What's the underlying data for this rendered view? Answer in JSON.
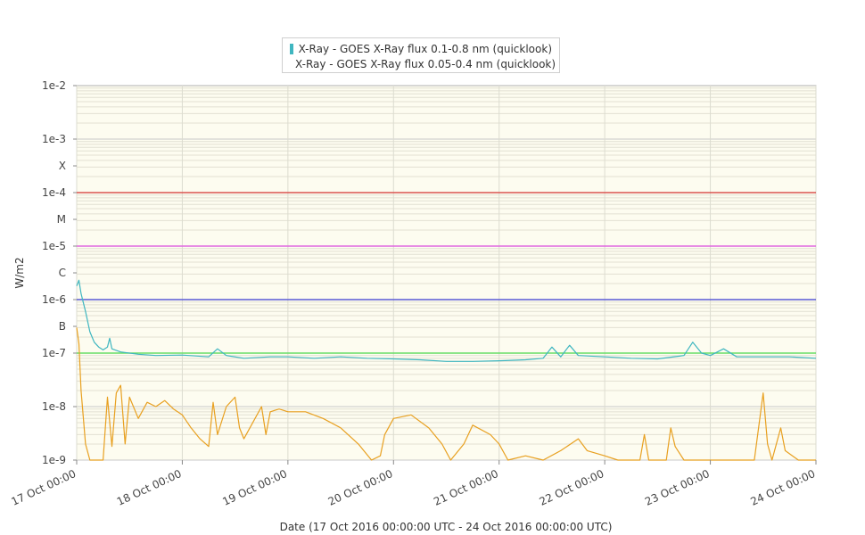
{
  "chart_data": {
    "type": "line",
    "xlabel": "Date (17 Oct 2016 00:00:00 UTC - 24 Oct 2016 00:00:00 UTC)",
    "ylabel": "W/m2",
    "y_scale": "log",
    "ylim": [
      1e-09,
      0.01
    ],
    "xlim": [
      "2016-10-17T00:00",
      "2016-10-24T00:00"
    ],
    "background": "#fdfcf0",
    "x_ticks": [
      {
        "label": "17 Oct 00:00",
        "t": "2016-10-17T00:00"
      },
      {
        "label": "18 Oct 00:00",
        "t": "2016-10-18T00:00"
      },
      {
        "label": "19 Oct 00:00",
        "t": "2016-10-19T00:00"
      },
      {
        "label": "20 Oct 00:00",
        "t": "2016-10-20T00:00"
      },
      {
        "label": "21 Oct 00:00",
        "t": "2016-10-21T00:00"
      },
      {
        "label": "22 Oct 00:00",
        "t": "2016-10-22T00:00"
      },
      {
        "label": "23 Oct 00:00",
        "t": "2016-10-23T00:00"
      },
      {
        "label": "24 Oct 00:00",
        "t": "2016-10-24T00:00"
      }
    ],
    "y_ticks": [
      {
        "label": "1e-2",
        "v": 0.01
      },
      {
        "label": "1e-3",
        "v": 0.001
      },
      {
        "label": "X",
        "v": 0.000316
      },
      {
        "label": "1e-4",
        "v": 0.0001
      },
      {
        "label": "M",
        "v": 3.16e-05
      },
      {
        "label": "1e-5",
        "v": 1e-05
      },
      {
        "label": "C",
        "v": 3.16e-06
      },
      {
        "label": "1e-6",
        "v": 1e-06
      },
      {
        "label": "B",
        "v": 3.16e-07
      },
      {
        "label": "1e-7",
        "v": 1e-07
      },
      {
        "label": "1e-8",
        "v": 1e-08
      },
      {
        "label": "1e-9",
        "v": 1e-09
      }
    ],
    "threshold_lines": [
      {
        "v": 0.0001,
        "color": "#d9534f"
      },
      {
        "v": 1e-05,
        "color": "#e066e0"
      },
      {
        "v": 1e-06,
        "color": "#5a5ad6"
      },
      {
        "v": 1e-07,
        "color": "#66dd66"
      }
    ],
    "series": [
      {
        "name": "X-Ray - GOES X-Ray flux 0.1-0.8 nm (quicklook)",
        "color": "#3fb6c0",
        "points": [
          [
            "2016-10-17T00:00",
            1.8e-06
          ],
          [
            "2016-10-17T00:30",
            2.3e-06
          ],
          [
            "2016-10-17T01:00",
            1.3e-06
          ],
          [
            "2016-10-17T02:00",
            6e-07
          ],
          [
            "2016-10-17T03:00",
            2.5e-07
          ],
          [
            "2016-10-17T04:00",
            1.6e-07
          ],
          [
            "2016-10-17T05:00",
            1.3e-07
          ],
          [
            "2016-10-17T06:00",
            1.15e-07
          ],
          [
            "2016-10-17T07:00",
            1.3e-07
          ],
          [
            "2016-10-17T07:30",
            1.9e-07
          ],
          [
            "2016-10-17T08:00",
            1.2e-07
          ],
          [
            "2016-10-17T10:00",
            1.05e-07
          ],
          [
            "2016-10-17T14:00",
            9.5e-08
          ],
          [
            "2016-10-17T18:00",
            9e-08
          ],
          [
            "2016-10-18T00:00",
            9.2e-08
          ],
          [
            "2016-10-18T06:00",
            8.5e-08
          ],
          [
            "2016-10-18T08:00",
            1.2e-07
          ],
          [
            "2016-10-18T10:00",
            9e-08
          ],
          [
            "2016-10-18T14:00",
            8e-08
          ],
          [
            "2016-10-18T20:00",
            8.5e-08
          ],
          [
            "2016-10-19T00:00",
            8.5e-08
          ],
          [
            "2016-10-19T06:00",
            8e-08
          ],
          [
            "2016-10-19T12:00",
            8.5e-08
          ],
          [
            "2016-10-19T18:00",
            8e-08
          ],
          [
            "2016-10-20T00:00",
            7.8e-08
          ],
          [
            "2016-10-20T06:00",
            7.5e-08
          ],
          [
            "2016-10-20T12:00",
            7e-08
          ],
          [
            "2016-10-20T18:00",
            7e-08
          ],
          [
            "2016-10-21T00:00",
            7.2e-08
          ],
          [
            "2016-10-21T06:00",
            7.5e-08
          ],
          [
            "2016-10-21T10:00",
            8e-08
          ],
          [
            "2016-10-21T12:00",
            1.3e-07
          ],
          [
            "2016-10-21T14:00",
            8.5e-08
          ],
          [
            "2016-10-21T16:00",
            1.4e-07
          ],
          [
            "2016-10-21T18:00",
            9e-08
          ],
          [
            "2016-10-22T00:00",
            8.5e-08
          ],
          [
            "2016-10-22T06:00",
            8e-08
          ],
          [
            "2016-10-22T12:00",
            7.8e-08
          ],
          [
            "2016-10-22T18:00",
            9e-08
          ],
          [
            "2016-10-22T20:00",
            1.6e-07
          ],
          [
            "2016-10-22T22:00",
            1e-07
          ],
          [
            "2016-10-23T00:00",
            9e-08
          ],
          [
            "2016-10-23T03:00",
            1.2e-07
          ],
          [
            "2016-10-23T06:00",
            8.5e-08
          ],
          [
            "2016-10-23T12:00",
            8.5e-08
          ],
          [
            "2016-10-23T18:00",
            8.5e-08
          ],
          [
            "2016-10-24T00:00",
            8e-08
          ]
        ]
      },
      {
        "name": "X-Ray - GOES X-Ray flux 0.05-0.4 nm (quicklook)",
        "color": "#e8a020",
        "points": [
          [
            "2016-10-17T00:00",
            3e-07
          ],
          [
            "2016-10-17T00:30",
            1.5e-07
          ],
          [
            "2016-10-17T01:00",
            2e-08
          ],
          [
            "2016-10-17T02:00",
            2e-09
          ],
          [
            "2016-10-17T03:00",
            1e-09
          ],
          [
            "2016-10-17T06:00",
            1e-09
          ],
          [
            "2016-10-17T07:00",
            1.5e-08
          ],
          [
            "2016-10-17T08:00",
            1.8e-09
          ],
          [
            "2016-10-17T09:00",
            1.8e-08
          ],
          [
            "2016-10-17T10:00",
            2.5e-08
          ],
          [
            "2016-10-17T11:00",
            2e-09
          ],
          [
            "2016-10-17T12:00",
            1.5e-08
          ],
          [
            "2016-10-17T14:00",
            6e-09
          ],
          [
            "2016-10-17T16:00",
            1.2e-08
          ],
          [
            "2016-10-17T18:00",
            1e-08
          ],
          [
            "2016-10-17T20:00",
            1.3e-08
          ],
          [
            "2016-10-17T22:00",
            9e-09
          ],
          [
            "2016-10-18T00:00",
            7e-09
          ],
          [
            "2016-10-18T02:00",
            4e-09
          ],
          [
            "2016-10-18T04:00",
            2.5e-09
          ],
          [
            "2016-10-18T06:00",
            1.8e-09
          ],
          [
            "2016-10-18T07:00",
            1.2e-08
          ],
          [
            "2016-10-18T08:00",
            3e-09
          ],
          [
            "2016-10-18T10:00",
            1e-08
          ],
          [
            "2016-10-18T12:00",
            1.5e-08
          ],
          [
            "2016-10-18T13:00",
            4e-09
          ],
          [
            "2016-10-18T14:00",
            2.5e-09
          ],
          [
            "2016-10-18T16:00",
            5e-09
          ],
          [
            "2016-10-18T18:00",
            1e-08
          ],
          [
            "2016-10-18T19:00",
            3e-09
          ],
          [
            "2016-10-18T20:00",
            8e-09
          ],
          [
            "2016-10-18T22:00",
            9e-09
          ],
          [
            "2016-10-19T00:00",
            8e-09
          ],
          [
            "2016-10-19T04:00",
            8e-09
          ],
          [
            "2016-10-19T08:00",
            6e-09
          ],
          [
            "2016-10-19T12:00",
            4e-09
          ],
          [
            "2016-10-19T16:00",
            2e-09
          ],
          [
            "2016-10-19T19:00",
            1e-09
          ],
          [
            "2016-10-19T21:00",
            1.2e-09
          ],
          [
            "2016-10-19T22:00",
            3e-09
          ],
          [
            "2016-10-20T00:00",
            6e-09
          ],
          [
            "2016-10-20T04:00",
            7e-09
          ],
          [
            "2016-10-20T08:00",
            4e-09
          ],
          [
            "2016-10-20T11:00",
            2e-09
          ],
          [
            "2016-10-20T13:00",
            1e-09
          ],
          [
            "2016-10-20T16:00",
            2e-09
          ],
          [
            "2016-10-20T18:00",
            4.5e-09
          ],
          [
            "2016-10-20T22:00",
            3e-09
          ],
          [
            "2016-10-21T00:00",
            2e-09
          ],
          [
            "2016-10-21T02:00",
            1e-09
          ],
          [
            "2016-10-21T06:00",
            1.2e-09
          ],
          [
            "2016-10-21T10:00",
            1e-09
          ],
          [
            "2016-10-21T14:00",
            1.5e-09
          ],
          [
            "2016-10-21T18:00",
            2.5e-09
          ],
          [
            "2016-10-21T20:00",
            1.5e-09
          ],
          [
            "2016-10-22T00:00",
            1.2e-09
          ],
          [
            "2016-10-22T03:00",
            1e-09
          ],
          [
            "2016-10-22T06:00",
            1e-09
          ],
          [
            "2016-10-22T08:00",
            1e-09
          ],
          [
            "2016-10-22T09:00",
            3e-09
          ],
          [
            "2016-10-22T10:00",
            1e-09
          ],
          [
            "2016-10-22T12:00",
            1e-09
          ],
          [
            "2016-10-22T14:00",
            1e-09
          ],
          [
            "2016-10-22T15:00",
            4e-09
          ],
          [
            "2016-10-22T16:00",
            1.8e-09
          ],
          [
            "2016-10-22T18:00",
            1e-09
          ],
          [
            "2016-10-23T00:00",
            1e-09
          ],
          [
            "2016-10-23T06:00",
            1e-09
          ],
          [
            "2016-10-23T10:00",
            1e-09
          ],
          [
            "2016-10-23T12:00",
            1.8e-08
          ],
          [
            "2016-10-23T13:00",
            2e-09
          ],
          [
            "2016-10-23T14:00",
            1e-09
          ],
          [
            "2016-10-23T16:00",
            4e-09
          ],
          [
            "2016-10-23T17:00",
            1.5e-09
          ],
          [
            "2016-10-23T20:00",
            1e-09
          ],
          [
            "2016-10-24T00:00",
            1e-09
          ]
        ]
      }
    ]
  }
}
